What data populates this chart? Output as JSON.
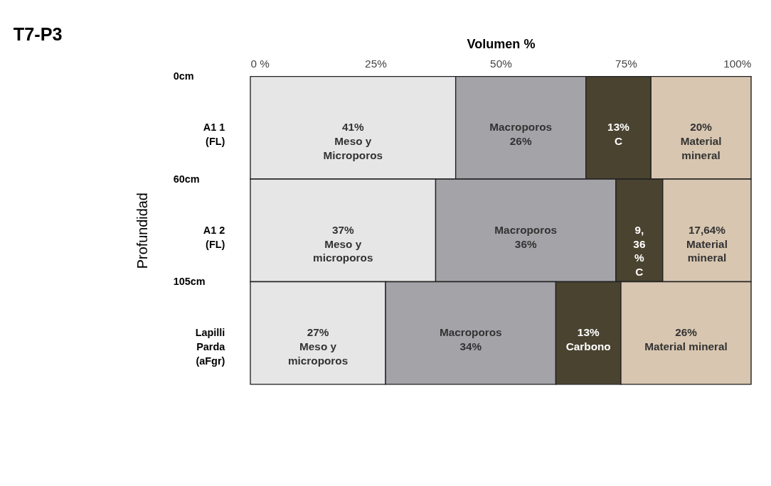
{
  "chart_data": {
    "type": "bar",
    "orientation": "horizontal",
    "stacked": true,
    "title": "T7-P3",
    "xlabel": "Volumen %",
    "ylabel": "Profundidad",
    "categories": [
      "A1 1\n(FL)",
      "A1 2\n(FL)",
      "Lapilli\nParda\n(aFgr)"
    ],
    "xlim": [
      0,
      100
    ],
    "xticks": [
      {
        "value": 0,
        "label": "0 %"
      },
      {
        "value": 25,
        "label": "25%"
      },
      {
        "value": 50,
        "label": "50%"
      },
      {
        "value": 75,
        "label": "75%"
      },
      {
        "value": 100,
        "label": "100%"
      }
    ],
    "series": [
      {
        "color": "#e6e6e6",
        "values": [
          41,
          37,
          27
        ],
        "value_labels": [
          "41%\nMeso y\nMicroporos",
          "37%\nMeso  y\nmicroporos",
          "27%\nMeso y\nmicroporos"
        ]
      },
      {
        "color": "#a3a3a8",
        "values": [
          26,
          36,
          34
        ],
        "value_labels": [
          "Macroporos\n26%",
          "Macroporos\n36%",
          "Macroporos\n34%"
        ]
      },
      {
        "color": "#4a4330",
        "values": [
          13,
          9.36,
          13
        ],
        "value_labels": [
          "13%\nC",
          "9,\n36\n%\nC",
          "13%\nCarbono"
        ]
      },
      {
        "color": "#d8c6b0",
        "values": [
          20,
          17.64,
          26
        ],
        "value_labels": [
          "20%\nMaterial\nmineral",
          "17,64%\nMaterial\nmineral",
          "26%\nMaterial mineral"
        ]
      }
    ],
    "annotations": [
      "0cm",
      "60cm",
      "105cm"
    ],
    "legend": false
  }
}
